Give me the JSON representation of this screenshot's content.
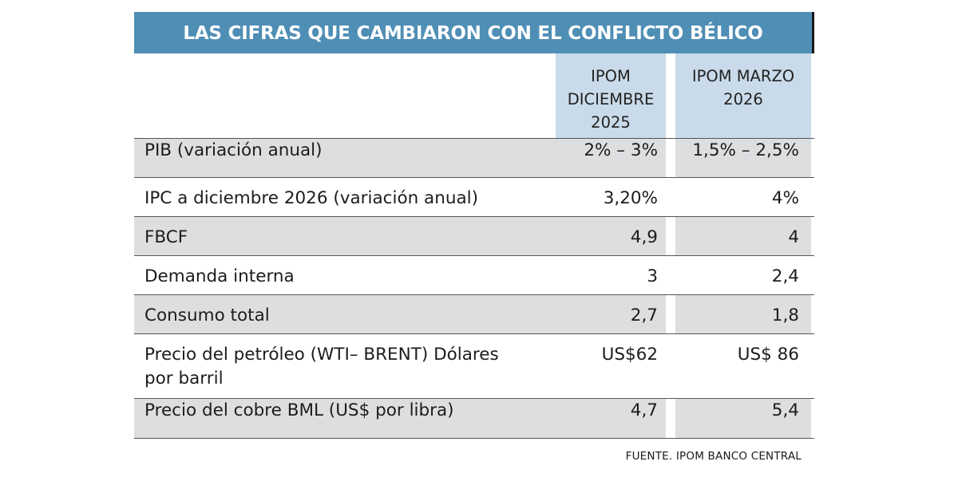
{
  "title": "LAS CIFRAS QUE CAMBIARON CON EL CONFLICTO BÉLICO",
  "header": {
    "col1": [
      "IPOM",
      "DICIEMBRE",
      "2025"
    ],
    "col2": [
      "IPOM MARZO",
      "2026"
    ]
  },
  "rows": [
    {
      "label": "PIB (variación anual)",
      "v1": "2% – 3%",
      "v2": "1,5% – 2,5%"
    },
    {
      "label": "IPC a diciembre 2026 (variación anual)",
      "v1": "3,20%",
      "v2": "4%"
    },
    {
      "label": "FBCF",
      "v1": "4,9",
      "v2": "4"
    },
    {
      "label": "Demanda interna",
      "v1": "3",
      "v2": "2,4"
    },
    {
      "label": "Consumo total",
      "v1": "2,7",
      "v2": "1,8"
    },
    {
      "label": "Precio del petróleo (WTI– BRENT) Dólares",
      "label_line2": "por barril",
      "v1": "US$62",
      "v2": "US$ 86"
    },
    {
      "label": "Precio del cobre BML (US$ por libra)",
      "v1": "4,7",
      "v2": "5,4"
    }
  ],
  "source": "FUENTE. IPOM BANCO CENTRAL",
  "colors": {
    "title_bg": "#4f8eb5",
    "header_bg": "#c9dbea",
    "shade_bg": "#dcdee0"
  }
}
